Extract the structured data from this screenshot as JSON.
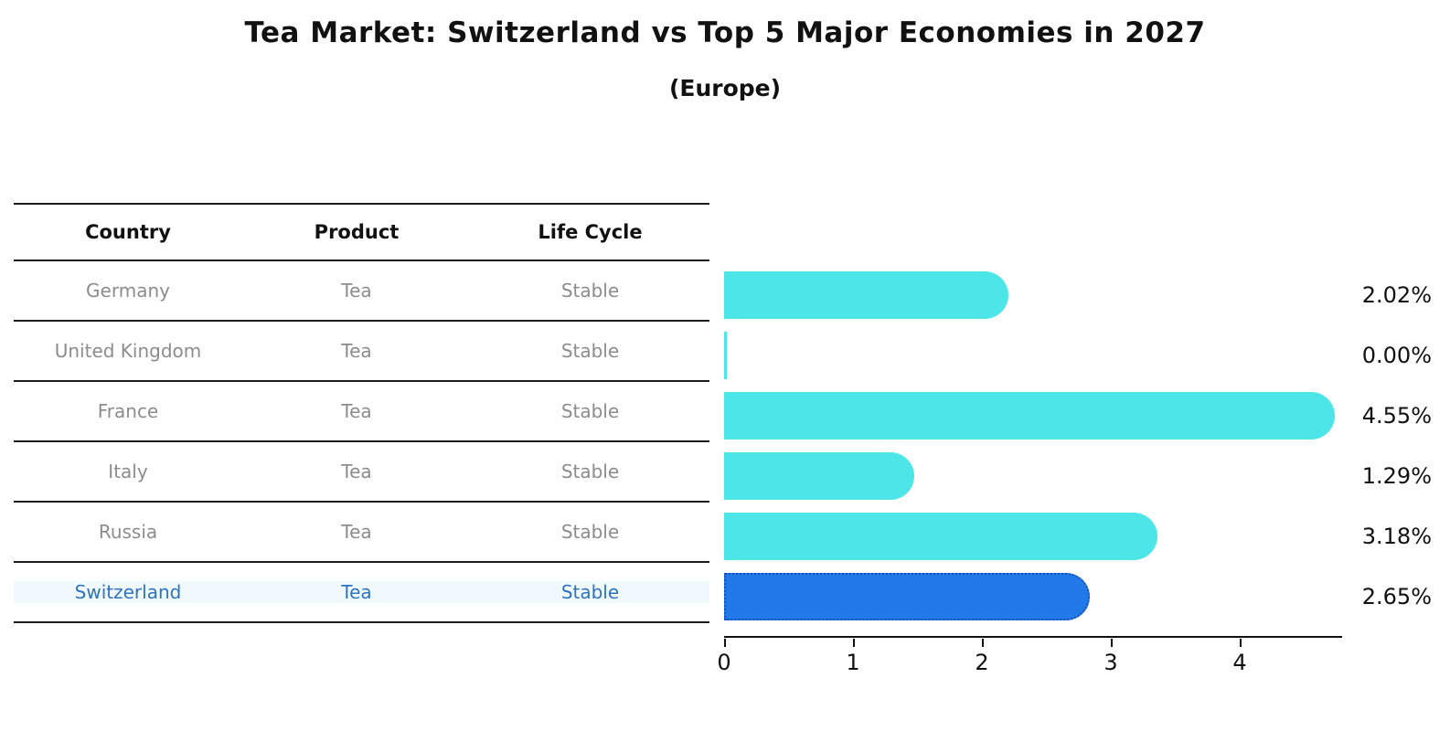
{
  "title": "Tea Market: Switzerland vs Top 5 Major Economies in 2027",
  "subtitle": "(Europe)",
  "table": {
    "headers": [
      "Country",
      "Product",
      "Life Cycle"
    ],
    "rows": [
      {
        "country": "Germany",
        "product": "Tea",
        "life_cycle": "Stable",
        "highlight": false
      },
      {
        "country": "United Kingdom",
        "product": "Tea",
        "life_cycle": "Stable",
        "highlight": false
      },
      {
        "country": "France",
        "product": "Tea",
        "life_cycle": "Stable",
        "highlight": false
      },
      {
        "country": "Italy",
        "product": "Tea",
        "life_cycle": "Stable",
        "highlight": false
      },
      {
        "country": "Russia",
        "product": "Tea",
        "life_cycle": "Stable",
        "highlight": true
      },
      {
        "country": "Switzerland",
        "product": "Tea",
        "life_cycle": "Stable",
        "highlight": true
      }
    ]
  },
  "chart_data": {
    "type": "bar",
    "orientation": "horizontal",
    "title": "Tea Market: Switzerland vs Top 5 Major Economies in 2027",
    "subtitle": "(Europe)",
    "categories": [
      "Germany",
      "United Kingdom",
      "France",
      "Italy",
      "Russia",
      "Switzerland"
    ],
    "values": [
      2.02,
      0.0,
      4.55,
      1.29,
      3.18,
      2.65
    ],
    "value_labels": [
      "2.02%",
      "0.00%",
      "4.55%",
      "1.29%",
      "3.18%",
      "2.65%"
    ],
    "highlight_category": "Switzerland",
    "xticks": [
      0,
      1,
      2,
      3,
      4
    ],
    "xlim": [
      0,
      4.78
    ],
    "grid": false,
    "legend": "none",
    "colors": {
      "bar_fill": "#4de6e8",
      "highlight_fill": "#217ae8",
      "highlight_border": "#1550c0",
      "axis": "#111111",
      "row_text": "#8c8c8c",
      "highlight_text": "#2e74c0"
    }
  },
  "layout_note": ""
}
